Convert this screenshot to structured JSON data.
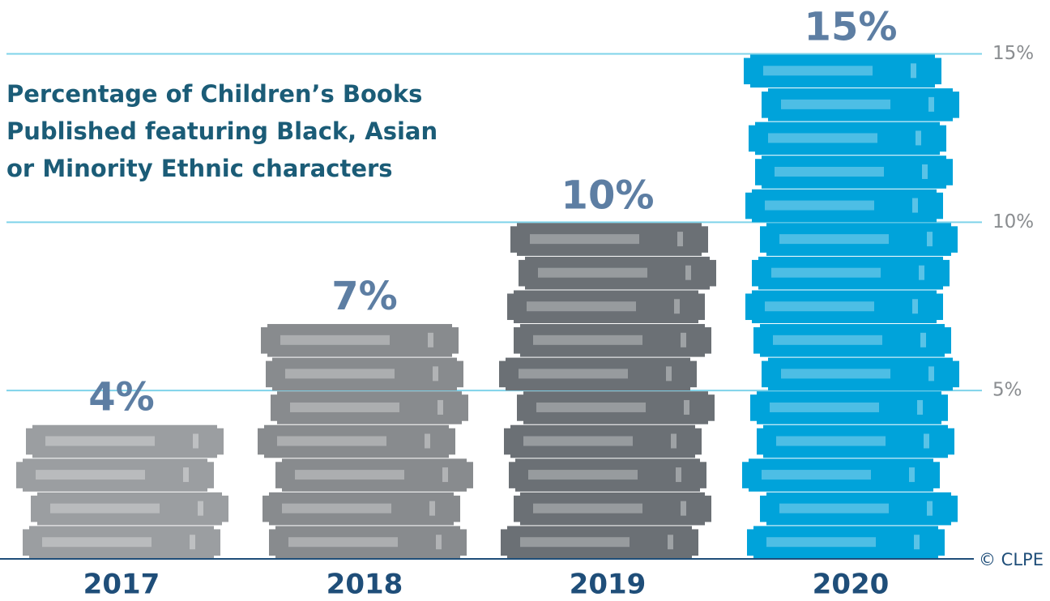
{
  "chart_data": {
    "type": "book-stack",
    "title": [
      "Percentage of Children’s Books",
      "Published featuring Black, Asian",
      "or Minority Ethnic characters"
    ],
    "categories": [
      "2017",
      "2018",
      "2019",
      "2020"
    ],
    "values": [
      4,
      7,
      10,
      15
    ],
    "value_labels": [
      "4%",
      "7%",
      "10%",
      "15%"
    ],
    "colors": [
      "#9b9ea1",
      "#888b8e",
      "#6b7075",
      "#00a3da"
    ],
    "ylim": [
      0,
      16.6
    ],
    "yticks": [
      {
        "value": 5,
        "label": "5%"
      },
      {
        "value": 10,
        "label": "10%"
      },
      {
        "value": 15,
        "label": "15%"
      }
    ],
    "grid": true,
    "credit": "© CLPE"
  }
}
